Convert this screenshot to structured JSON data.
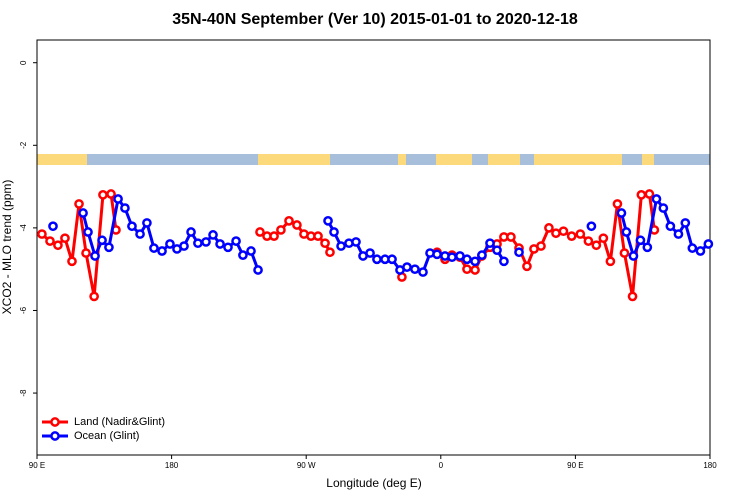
{
  "chart_data": {
    "type": "line",
    "title": "35N-40N September (Ver 10)   2015-01-01 to 2020-12-18",
    "xlabel": "Longitude (deg E)",
    "ylabel": "XCO2 - MLO trend (ppm)",
    "xlim": [
      90,
      540
    ],
    "ylim": [
      -9.5,
      0.55
    ],
    "xticks": [
      {
        "value": 90,
        "label": "90 E"
      },
      180,
      {
        "value": 270,
        "label": "90 W"
      },
      {
        "value": 360,
        "label": "0"
      },
      {
        "value": 450,
        "label": "90 E"
      },
      {
        "value": 540,
        "label": "180"
      }
    ],
    "yticks": [
      0,
      -2,
      -4,
      -6,
      -8
    ],
    "legend": "bottom-left",
    "series": [
      {
        "name": "Land (Nadir&Glint)",
        "color": "#ff0000",
        "x": [
          93.3,
          98.7,
          104.0,
          108.7,
          113.4,
          118.1,
          122.8,
          128.2,
          134.1,
          139.5,
          142.8,
          239.1,
          243.8,
          248.5,
          253.1,
          258.5,
          263.8,
          268.5,
          273.2,
          277.9,
          282.6,
          285.9,
          334.0,
          357.5,
          362.8,
          367.5,
          372.8,
          377.5,
          382.9,
          387.5,
          392.9,
          397.6,
          402.2,
          406.9,
          412.3,
          417.6,
          422.3,
          427.0,
          432.3,
          437.0,
          442.0,
          447.5,
          453.3,
          458.7,
          464.0,
          468.7,
          473.4,
          478.1,
          482.8,
          488.2,
          494.1,
          499.5,
          502.8
        ],
        "values": [
          -4.15,
          -4.32,
          -4.42,
          -4.25,
          -4.81,
          -3.42,
          -4.61,
          -5.66,
          -3.2,
          -3.18,
          -4.05,
          -4.1,
          -4.2,
          -4.2,
          -4.05,
          -3.83,
          -3.93,
          -4.15,
          -4.2,
          -4.2,
          -4.37,
          -4.59,
          -5.19,
          -4.59,
          -4.76,
          -4.66,
          -4.71,
          -5.0,
          -5.02,
          -4.68,
          -4.47,
          -4.39,
          -4.22,
          -4.22,
          -4.49,
          -4.93,
          -4.51,
          -4.44,
          -4.0,
          -4.13,
          -4.08,
          -4.2,
          -4.15,
          -4.32,
          -4.42,
          -4.25,
          -4.81,
          -3.42,
          -4.61,
          -5.66,
          -3.2,
          -3.18,
          -4.05
        ]
      },
      {
        "name": "Ocean (Glint)",
        "color": "#0000ff",
        "x": [
          100.7,
          120.8,
          124.1,
          128.8,
          133.5,
          138.1,
          144.2,
          148.8,
          153.5,
          158.9,
          163.5,
          168.2,
          173.6,
          178.9,
          183.6,
          188.3,
          193.0,
          197.6,
          203.0,
          207.7,
          212.4,
          217.7,
          223.1,
          227.7,
          233.1,
          237.8,
          284.6,
          288.6,
          293.3,
          298.6,
          303.3,
          308.0,
          312.7,
          317.3,
          322.7,
          327.4,
          332.7,
          337.4,
          342.7,
          348.1,
          352.8,
          357.5,
          362.8,
          367.5,
          372.8,
          377.5,
          382.9,
          387.5,
          392.9,
          397.6,
          402.2,
          412.3,
          460.7,
          480.8,
          484.1,
          488.8,
          493.5,
          498.1,
          504.2,
          508.8,
          513.5,
          518.9,
          523.5,
          528.2,
          533.6,
          538.9
        ],
        "values": [
          -3.96,
          -3.64,
          -4.1,
          -4.68,
          -4.3,
          -4.47,
          -3.3,
          -3.52,
          -3.96,
          -4.15,
          -3.88,
          -4.49,
          -4.56,
          -4.39,
          -4.51,
          -4.44,
          -4.1,
          -4.37,
          -4.34,
          -4.17,
          -4.39,
          -4.47,
          -4.32,
          -4.66,
          -4.56,
          -5.02,
          -3.83,
          -4.1,
          -4.44,
          -4.37,
          -4.34,
          -4.68,
          -4.61,
          -4.76,
          -4.76,
          -4.76,
          -5.02,
          -4.95,
          -5.0,
          -5.07,
          -4.61,
          -4.64,
          -4.68,
          -4.71,
          -4.68,
          -4.76,
          -4.81,
          -4.66,
          -4.37,
          -4.54,
          -4.81,
          -4.59,
          -3.96,
          -3.64,
          -4.1,
          -4.68,
          -4.3,
          -4.47,
          -3.3,
          -3.52,
          -3.96,
          -4.15,
          -3.88,
          -4.49,
          -4.56,
          -4.39
        ]
      }
    ]
  }
}
